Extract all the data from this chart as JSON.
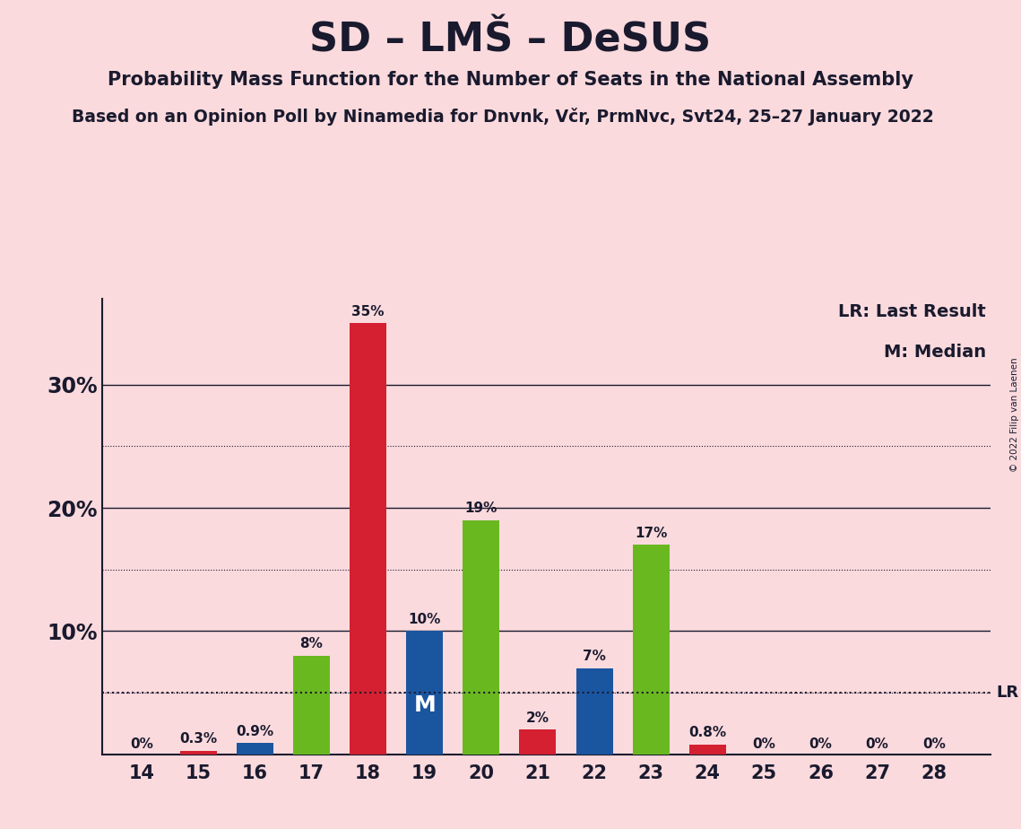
{
  "title": "SD – LMŠ – DeSUS",
  "subtitle": "Probability Mass Function for the Number of Seats in the National Assembly",
  "subtitle2": "Based on an Opinion Poll by Ninamedia for Dnvnk, Včr, PrmNvc, Svt24, 25–27 January 2022",
  "copyright": "© 2022 Filip van Laenen",
  "seats": [
    14,
    15,
    16,
    17,
    18,
    19,
    20,
    21,
    22,
    23,
    24,
    25,
    26,
    27,
    28
  ],
  "values": [
    0.0,
    0.3,
    0.9,
    8.0,
    35.0,
    10.0,
    19.0,
    2.0,
    7.0,
    17.0,
    0.8,
    0.0,
    0.0,
    0.0,
    0.0
  ],
  "labels": [
    "0%",
    "0.3%",
    "0.9%",
    "8%",
    "35%",
    "10%",
    "19%",
    "2%",
    "7%",
    "17%",
    "0.8%",
    "0%",
    "0%",
    "0%",
    "0%"
  ],
  "colors": [
    "#FADADD",
    "#D42030",
    "#1a55a0",
    "#6ab820",
    "#D42030",
    "#1a55a0",
    "#6ab820",
    "#D42030",
    "#1a55a0",
    "#6ab820",
    "#D42030",
    "#FADADD",
    "#FADADD",
    "#FADADD",
    "#FADADD"
  ],
  "median_seat": 19,
  "lr_value": 5.0,
  "ylim": [
    0,
    37
  ],
  "background_color": "#FADADD",
  "text_color": "#1a1a2e",
  "legend_lr": "LR: Last Result",
  "legend_m": "M: Median",
  "bar_width": 0.65
}
